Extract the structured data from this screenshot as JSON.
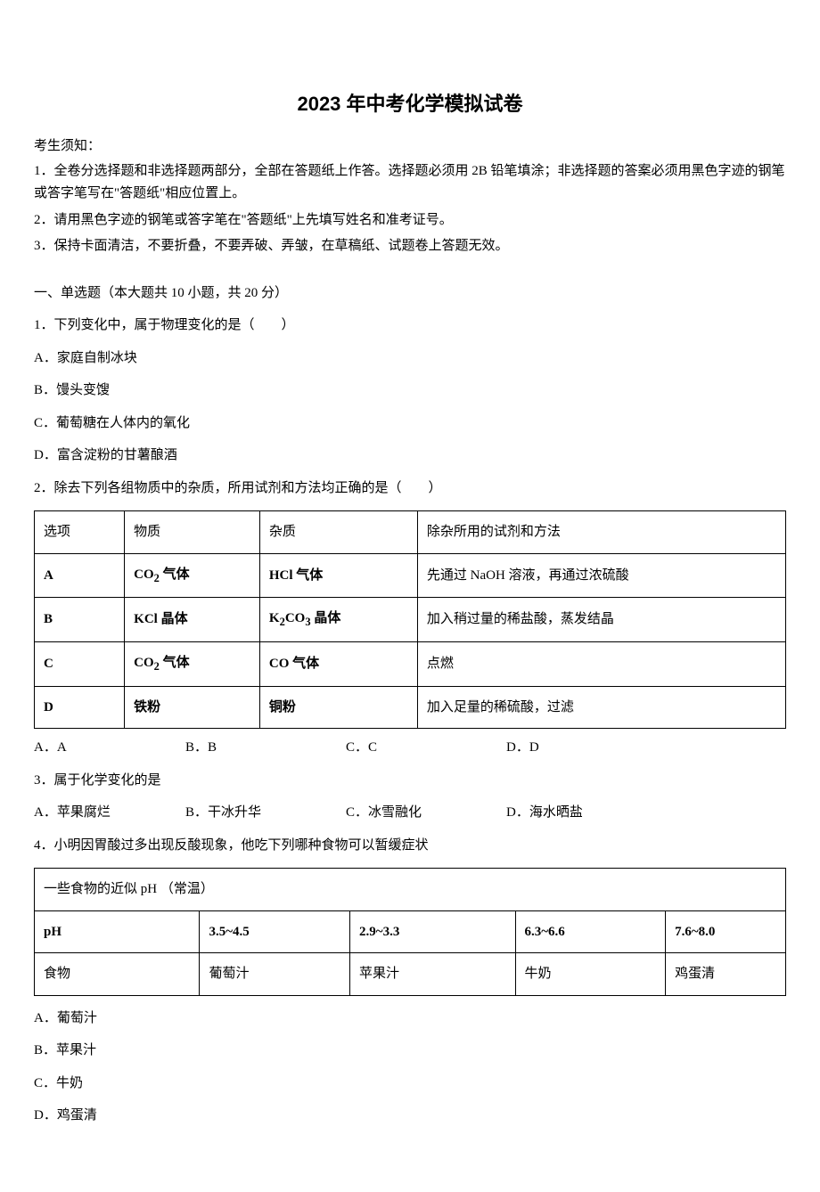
{
  "title": "2023 年中考化学模拟试卷",
  "instructions": {
    "header": "考生须知：",
    "lines": [
      "1．全卷分选择题和非选择题两部分，全部在答题纸上作答。选择题必须用 2B 铅笔填涂；非选择题的答案必须用黑色字迹的钢笔或答字笔写在\"答题纸\"相应位置上。",
      "2．请用黑色字迹的钢笔或答字笔在\"答题纸\"上先填写姓名和准考证号。",
      "3．保持卡面清洁，不要折叠，不要弄破、弄皱，在草稿纸、试题卷上答题无效。"
    ]
  },
  "section_header": "一、单选题（本大题共 10 小题，共 20 分）",
  "q1": {
    "stem": "1．下列变化中，属于物理变化的是（　　）",
    "options": {
      "A": "A．家庭自制冰块",
      "B": "B．馒头变馊",
      "C": "C．葡萄糖在人体内的氧化",
      "D": "D．富含淀粉的甘薯酿酒"
    }
  },
  "q2": {
    "stem": "2．除去下列各组物质中的杂质，所用试剂和方法均正确的是（　　）",
    "table": {
      "headers": [
        "选项",
        "物质",
        "杂质",
        "除杂所用的试剂和方法"
      ],
      "rows": [
        {
          "opt": "A",
          "sub_html": "CO<sub>2</sub> 气体",
          "imp_html": "HCl 气体",
          "method": "先通过 NaOH 溶液，再通过浓硫酸"
        },
        {
          "opt": "B",
          "sub_html": "KCl 晶体",
          "imp_html": "K<sub>2</sub>CO<sub>3</sub> 晶体",
          "method": "加入稍过量的稀盐酸，蒸发结晶"
        },
        {
          "opt": "C",
          "sub_html": "CO<sub>2</sub> 气体",
          "imp_html": "CO 气体",
          "method": "点燃"
        },
        {
          "opt": "D",
          "sub_html": "铁粉",
          "imp_html": "铜粉",
          "method": "加入足量的稀硫酸，过滤"
        }
      ]
    },
    "options": {
      "A": "A．A",
      "B": "B．B",
      "C": "C．C",
      "D": "D．D"
    }
  },
  "q3": {
    "stem": "3．属于化学变化的是",
    "options": {
      "A": "A．苹果腐烂",
      "B": "B．干冰升华",
      "C": "C．冰雪融化",
      "D": "D．海水晒盐"
    }
  },
  "q4": {
    "stem": "4．小明因胃酸过多出现反酸现象，他吃下列哪种食物可以暂缓症状",
    "table": {
      "caption": "一些食物的近似 pH （常温）",
      "row_ph": [
        "pH",
        "3.5~4.5",
        "2.9~3.3",
        "6.3~6.6",
        "7.6~8.0"
      ],
      "row_food": [
        "食物",
        "葡萄汁",
        "苹果汁",
        "牛奶",
        "鸡蛋清"
      ]
    },
    "options": {
      "A": "A．葡萄汁",
      "B": "B．苹果汁",
      "C": "C．牛奶",
      "D": "D．鸡蛋清"
    }
  }
}
